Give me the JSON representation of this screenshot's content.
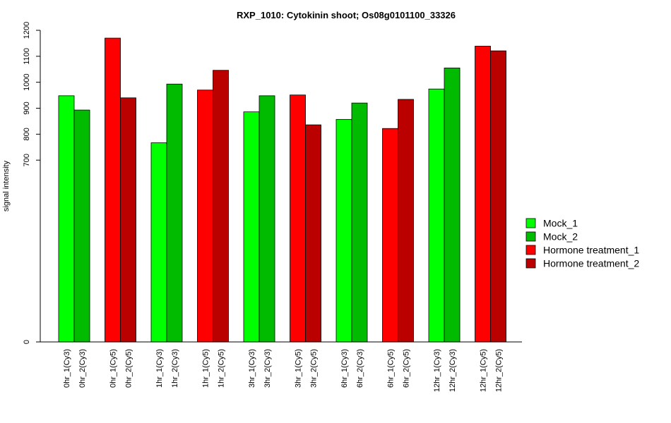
{
  "chart_data": {
    "type": "bar",
    "title": "RXP_1010: Cytokinin shoot; Os08g0101100_33326",
    "ylabel": "signal intensity",
    "xlabel": "",
    "ylim": [
      0,
      1200
    ],
    "y_ticks": [
      0,
      700,
      800,
      900,
      1000,
      1100,
      1200
    ],
    "categories": [
      "0hr_1(Cy3)",
      "0hr_2(Cy3)",
      "0hr_1(Cy5)",
      "0hr_2(Cy5)",
      "1hr_1(Cy3)",
      "1hr_2(Cy3)",
      "1hr_1(Cy5)",
      "1hr_2(Cy5)",
      "3hr_1(Cy3)",
      "3hr_2(Cy3)",
      "3hr_1(Cy5)",
      "3hr_2(Cy5)",
      "6hr_1(Cy3)",
      "6hr_2(Cy3)",
      "6hr_1(Cy5)",
      "6hr_2(Cy5)",
      "12hr_1(Cy3)",
      "12hr_2(Cy3)",
      "12hr_1(Cy5)",
      "12hr_2(Cy5)"
    ],
    "values": [
      948,
      893,
      1170,
      940,
      767,
      993,
      970,
      1046,
      886,
      948,
      951,
      836,
      857,
      920,
      822,
      934,
      974,
      1055,
      1139,
      1121
    ],
    "bar_series": [
      0,
      1,
      2,
      3,
      0,
      1,
      2,
      3,
      0,
      1,
      2,
      3,
      0,
      1,
      2,
      3,
      0,
      1,
      2,
      3
    ],
    "series": [
      {
        "name": "Mock_1",
        "color": "#00ff00"
      },
      {
        "name": "Mock_2",
        "color": "#00bb00"
      },
      {
        "name": "Hormone treatment_1",
        "color": "#ff0000"
      },
      {
        "name": "Hormone treatment_2",
        "color": "#bb0000"
      }
    ],
    "legend_position": "right",
    "grid": false
  }
}
